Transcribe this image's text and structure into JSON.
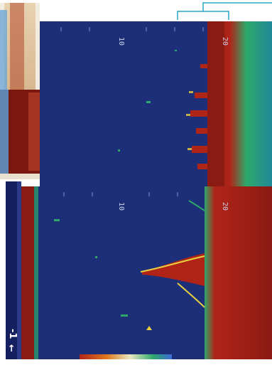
{
  "colors": {
    "water": "#1c2f78",
    "seabed": "#8a1a12",
    "echo_red": "#b02418",
    "echo_yellow": "#e8d040",
    "echo_green": "#2ea86a",
    "bracket": "#2aa7c4"
  },
  "top_panel": {
    "depth_label_mid": "10",
    "depth_label_right": "20"
  },
  "bottom_panel": {
    "depth_label_mid": "10",
    "depth_label_right": "20",
    "scale_readout": "-1"
  },
  "icons": {
    "scale_marker": "arrow-left-icon"
  }
}
